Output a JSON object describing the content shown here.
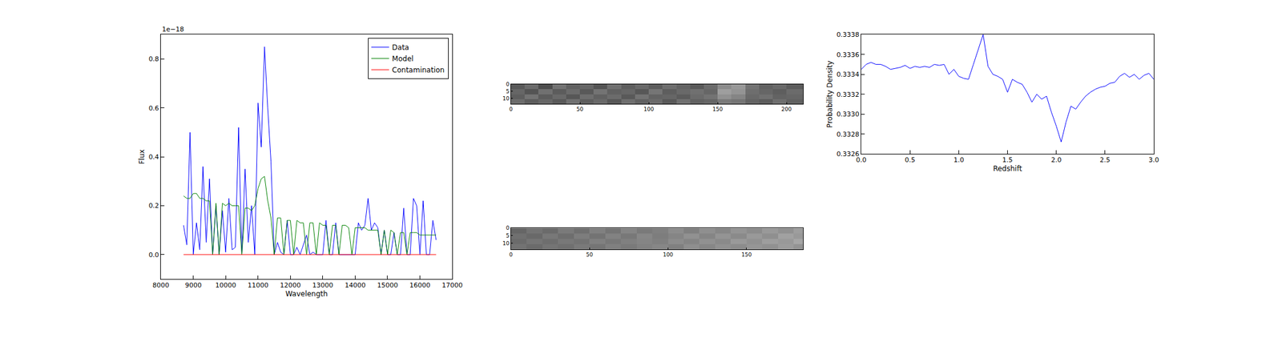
{
  "chart_data": [
    {
      "type": "line",
      "xlabel": "Wavelength",
      "ylabel": "Flux",
      "annotation": "1e−18",
      "x": [
        8700,
        8800,
        8900,
        9000,
        9100,
        9200,
        9300,
        9400,
        9500,
        9600,
        9700,
        9800,
        9900,
        10000,
        10100,
        10200,
        10300,
        10400,
        10500,
        10600,
        10700,
        10800,
        10900,
        11000,
        11100,
        11200,
        11300,
        11400,
        11500,
        11600,
        11700,
        11800,
        11900,
        12000,
        12100,
        12200,
        12300,
        12400,
        12500,
        12600,
        12700,
        12800,
        12900,
        13000,
        13100,
        13200,
        13300,
        13400,
        13500,
        13600,
        13700,
        13800,
        13900,
        14000,
        14100,
        14200,
        14300,
        14400,
        14500,
        14600,
        14700,
        14800,
        14900,
        15000,
        15100,
        15200,
        15300,
        15400,
        15500,
        15600,
        15700,
        15800,
        15900,
        16000,
        16100,
        16200,
        16300,
        16400,
        16500
      ],
      "series": [
        {
          "name": "Data",
          "color": "#0000ff",
          "values": [
            0.12,
            0.04,
            0.5,
            0.0,
            0.13,
            0.02,
            0.36,
            0.05,
            0.31,
            0.0,
            0.2,
            0.0,
            0.18,
            0.01,
            0.23,
            0.02,
            0.03,
            0.52,
            0.0,
            0.35,
            0.05,
            0.2,
            0.0,
            0.62,
            0.44,
            0.85,
            0.6,
            0.38,
            0.0,
            0.05,
            0.01,
            0.0,
            0.14,
            0.0,
            0.0,
            0.03,
            0.0,
            0.04,
            0.08,
            0.0,
            0.01,
            0.0,
            0.0,
            0.0,
            0.14,
            0.0,
            0.0,
            0.13,
            0.0,
            0.0,
            0.0,
            0.0,
            0.0,
            0.0,
            0.13,
            0.1,
            0.12,
            0.23,
            0.1,
            0.13,
            0.11,
            0.0,
            0.1,
            0.0,
            0.0,
            0.09,
            0.0,
            0.0,
            0.19,
            0.0,
            0.0,
            0.23,
            0.2,
            0.0,
            0.22,
            0.0,
            0.0,
            0.14,
            0.06
          ]
        },
        {
          "name": "Model",
          "color": "#008000",
          "values": [
            0.24,
            0.23,
            0.23,
            0.25,
            0.25,
            0.23,
            0.23,
            0.22,
            0.22,
            0.0,
            0.21,
            0.0,
            0.21,
            0.2,
            0.21,
            0.2,
            0.2,
            0.2,
            0.0,
            0.19,
            0.19,
            0.18,
            0.2,
            0.27,
            0.31,
            0.32,
            0.22,
            0.15,
            0.0,
            0.15,
            0.15,
            0.0,
            0.14,
            0.14,
            0.0,
            0.14,
            0.13,
            0.13,
            0.0,
            0.13,
            0.13,
            0.0,
            0.13,
            0.12,
            0.12,
            0.0,
            0.12,
            0.12,
            0.0,
            0.12,
            0.12,
            0.11,
            0.0,
            0.11,
            0.11,
            0.11,
            0.11,
            0.1,
            0.1,
            0.1,
            0.1,
            0.0,
            0.1,
            0.0,
            0.1,
            0.09,
            0.0,
            0.09,
            0.09,
            0.0,
            0.09,
            0.09,
            0.09,
            0.08,
            0.08,
            0.08,
            0.08,
            0.08,
            0.08
          ]
        },
        {
          "name": "Contamination",
          "color": "#ff0000",
          "values": [
            0,
            0,
            0,
            0,
            0,
            0,
            0,
            0,
            0,
            0,
            0,
            0,
            0,
            0,
            0,
            0,
            0,
            0,
            0,
            0,
            0,
            0,
            0,
            0,
            0,
            0,
            0,
            0,
            0,
            0,
            0,
            0,
            0,
            0,
            0,
            0,
            0,
            0,
            0,
            0,
            0,
            0,
            0,
            0,
            0,
            0,
            0,
            0,
            0,
            0,
            0,
            0,
            0,
            0,
            0,
            0,
            0,
            0,
            0,
            0,
            0,
            0,
            0,
            0,
            0,
            0,
            0,
            0,
            0,
            0,
            0,
            0,
            0,
            0,
            0,
            0,
            0,
            0,
            0
          ]
        }
      ],
      "xlim": [
        8000,
        17000
      ],
      "xticks": [
        8000,
        9000,
        10000,
        11000,
        12000,
        13000,
        14000,
        15000,
        16000,
        17000
      ],
      "ylim": [
        -0.1,
        0.9
      ],
      "yticks": [
        {
          "value": 0,
          "label": "0.0"
        },
        0.2,
        0.4,
        0.6,
        0.8
      ],
      "legend": "upper right"
    },
    {
      "type": "heatmap",
      "x_edges": [
        0,
        10,
        20,
        30,
        40,
        50,
        60,
        70,
        80,
        90,
        100,
        110,
        120,
        130,
        140,
        150,
        160,
        170,
        180,
        190,
        200,
        212
      ],
      "y_edges": [
        0,
        3.5,
        7,
        10.5,
        14
      ],
      "cells": [
        [
          0.35,
          0.42,
          0.3,
          0.45,
          0.38,
          0.4,
          0.33,
          0.44,
          0.37,
          0.41,
          0.36,
          0.43,
          0.39,
          0.35,
          0.42,
          0.55,
          0.6,
          0.45,
          0.38,
          0.41,
          0.36
        ],
        [
          0.4,
          0.33,
          0.44,
          0.36,
          0.42,
          0.35,
          0.45,
          0.38,
          0.4,
          0.34,
          0.46,
          0.37,
          0.41,
          0.44,
          0.4,
          0.62,
          0.58,
          0.43,
          0.4,
          0.37,
          0.42
        ],
        [
          0.37,
          0.45,
          0.36,
          0.41,
          0.34,
          0.43,
          0.38,
          0.42,
          0.35,
          0.45,
          0.39,
          0.4,
          0.36,
          0.42,
          0.45,
          0.57,
          0.52,
          0.41,
          0.44,
          0.39,
          0.4
        ],
        [
          0.42,
          0.36,
          0.4,
          0.35,
          0.44,
          0.37,
          0.41,
          0.34,
          0.43,
          0.38,
          0.42,
          0.35,
          0.44,
          0.38,
          0.4,
          0.48,
          0.46,
          0.39,
          0.36,
          0.43,
          0.38
        ]
      ],
      "zlim": [
        0,
        1
      ],
      "xlim": [
        0,
        212
      ],
      "xticks": [
        0,
        50,
        100,
        150,
        200
      ],
      "ylim": [
        14,
        0
      ],
      "yticks": [
        0,
        5,
        10
      ]
    },
    {
      "type": "heatmap",
      "x_edges": [
        0,
        10,
        20,
        30,
        40,
        50,
        60,
        70,
        80,
        90,
        100,
        110,
        120,
        130,
        140,
        150,
        160,
        170,
        180,
        186
      ],
      "y_edges": [
        0,
        3.5,
        7,
        10.5,
        14
      ],
      "cells": [
        [
          0.4,
          0.45,
          0.42,
          0.48,
          0.44,
          0.5,
          0.46,
          0.52,
          0.48,
          0.5,
          0.55,
          0.5,
          0.56,
          0.53,
          0.58,
          0.55,
          0.6,
          0.57,
          0.62
        ],
        [
          0.44,
          0.41,
          0.47,
          0.43,
          0.49,
          0.45,
          0.51,
          0.47,
          0.53,
          0.49,
          0.52,
          0.57,
          0.52,
          0.58,
          0.54,
          0.6,
          0.56,
          0.63,
          0.6
        ],
        [
          0.42,
          0.46,
          0.43,
          0.47,
          0.45,
          0.5,
          0.47,
          0.5,
          0.52,
          0.5,
          0.55,
          0.52,
          0.57,
          0.54,
          0.6,
          0.57,
          0.62,
          0.6,
          0.65
        ],
        [
          0.45,
          0.42,
          0.46,
          0.44,
          0.48,
          0.46,
          0.5,
          0.48,
          0.51,
          0.53,
          0.5,
          0.56,
          0.53,
          0.57,
          0.55,
          0.59,
          0.57,
          0.61,
          0.58
        ]
      ],
      "zlim": [
        0,
        1
      ],
      "xlim": [
        0,
        186
      ],
      "xticks": [
        0,
        50,
        100,
        150
      ],
      "ylim": [
        14,
        0
      ],
      "yticks": [
        0,
        5,
        10
      ]
    },
    {
      "type": "line",
      "xlabel": "Redshift",
      "ylabel": "Probability Density",
      "x": [
        0,
        0.05,
        0.1,
        0.15,
        0.2,
        0.25,
        0.3,
        0.35,
        0.4,
        0.45,
        0.5,
        0.55,
        0.6,
        0.65,
        0.7,
        0.75,
        0.8,
        0.85,
        0.9,
        0.95,
        1.0,
        1.05,
        1.1,
        1.15,
        1.2,
        1.25,
        1.3,
        1.35,
        1.4,
        1.45,
        1.5,
        1.55,
        1.6,
        1.65,
        1.7,
        1.75,
        1.8,
        1.85,
        1.9,
        1.95,
        2.0,
        2.05,
        2.1,
        2.15,
        2.2,
        2.25,
        2.3,
        2.35,
        2.4,
        2.45,
        2.5,
        2.55,
        2.6,
        2.65,
        2.7,
        2.75,
        2.8,
        2.85,
        2.9,
        2.95,
        3.0
      ],
      "series": [
        {
          "color": "#0000ff",
          "values": [
            0.33345,
            0.3335,
            0.33352,
            0.3335,
            0.3335,
            0.33348,
            0.33345,
            0.33346,
            0.33347,
            0.33349,
            0.33346,
            0.33348,
            0.33347,
            0.33348,
            0.33347,
            0.3335,
            0.33349,
            0.3335,
            0.3334,
            0.33345,
            0.33338,
            0.33336,
            0.33335,
            0.3335,
            0.33365,
            0.3338,
            0.33348,
            0.3334,
            0.33338,
            0.33335,
            0.33322,
            0.33335,
            0.33332,
            0.3333,
            0.33322,
            0.33312,
            0.3332,
            0.33315,
            0.33318,
            0.33302,
            0.33288,
            0.33272,
            0.33292,
            0.33308,
            0.33305,
            0.33312,
            0.33318,
            0.33322,
            0.33325,
            0.33327,
            0.33328,
            0.33331,
            0.33332,
            0.33338,
            0.33341,
            0.33337,
            0.3334,
            0.33335,
            0.33339,
            0.33341,
            0.33335
          ]
        }
      ],
      "xlim": [
        0,
        3
      ],
      "xticks": [
        {
          "value": 0,
          "label": "0.0"
        },
        0.5,
        {
          "value": 1,
          "label": "1.0"
        },
        1.5,
        {
          "value": 2,
          "label": "2.0"
        },
        2.5,
        {
          "value": 3,
          "label": "3.0"
        }
      ],
      "ylim": [
        0.3326,
        0.3338
      ],
      "yticks": [
        0.3326,
        0.3328,
        {
          "value": 0.333,
          "label": "0.3330"
        },
        0.3332,
        0.3334,
        0.3336,
        0.3338
      ]
    }
  ]
}
